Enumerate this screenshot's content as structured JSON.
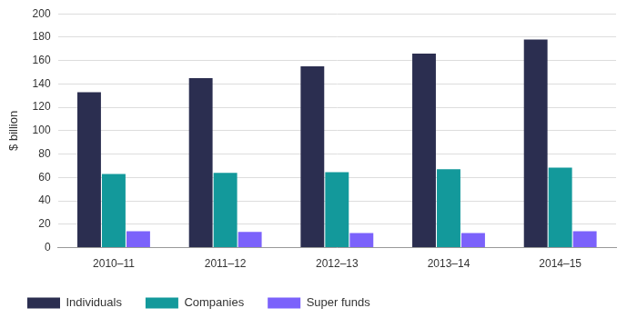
{
  "chart_data": {
    "type": "bar",
    "y_label": "$ billion",
    "categories": [
      "2010–11",
      "2011–12",
      "2012–13",
      "2013–14",
      "2014–15"
    ],
    "series": [
      {
        "name": "Individuals",
        "color": "#2b2e50",
        "values": [
          133,
          145,
          155,
          166,
          178
        ]
      },
      {
        "name": "Companies",
        "color": "#13999b",
        "values": [
          63,
          64,
          64.5,
          67,
          68.5
        ]
      },
      {
        "name": "Super funds",
        "color": "#7b62fb",
        "values": [
          14,
          13.5,
          12.5,
          12.5,
          14
        ]
      }
    ],
    "ylim": [
      0,
      200
    ],
    "yticks": [
      0,
      20,
      40,
      60,
      80,
      100,
      120,
      140,
      160,
      180,
      200
    ],
    "grid": true,
    "legend": "bottom-left"
  }
}
